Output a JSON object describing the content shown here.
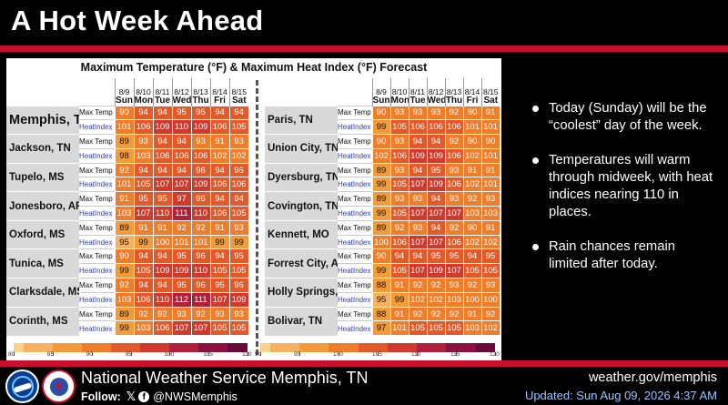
{
  "header": {
    "title": "A Hot Week Ahead"
  },
  "panel": {
    "title": "Maximum Temperature (°F) & Maximum Heat Index (°F) Forecast",
    "row_labels": {
      "max_temp": "Max Temp",
      "heat_index": "HeatIndex"
    },
    "dates": [
      "8/9",
      "8/10",
      "8/11",
      "8/12",
      "8/13",
      "8/14",
      "8/15"
    ],
    "days": [
      "Sun",
      "Mon",
      "Tue",
      "Wed",
      "Thu",
      "Fri",
      "Sat"
    ],
    "left_cities": [
      {
        "name": "Memphis, TN",
        "big": true,
        "max_temp": [
          90,
          94,
          94,
          95,
          95,
          94,
          94
        ],
        "heat_index": [
          101,
          106,
          109,
          110,
          109,
          106,
          105
        ]
      },
      {
        "name": "Jackson, TN",
        "max_temp": [
          89,
          93,
          94,
          94,
          93,
          91,
          93
        ],
        "heat_index": [
          98,
          103,
          106,
          106,
          106,
          102,
          102
        ]
      },
      {
        "name": "Tupelo, MS",
        "max_temp": [
          92,
          94,
          94,
          94,
          96,
          94,
          96
        ],
        "heat_index": [
          101,
          105,
          107,
          107,
          109,
          106,
          106
        ]
      },
      {
        "name": "Jonesboro, AR",
        "max_temp": [
          91,
          95,
          95,
          97,
          96,
          94,
          94
        ],
        "heat_index": [
          103,
          107,
          110,
          111,
          110,
          106,
          105
        ]
      },
      {
        "name": "Oxford, MS",
        "max_temp": [
          89,
          91,
          91,
          92,
          92,
          91,
          93
        ],
        "heat_index": [
          95,
          99,
          100,
          101,
          101,
          99,
          99
        ]
      },
      {
        "name": "Tunica, MS",
        "max_temp": [
          90,
          94,
          94,
          95,
          96,
          94,
          95
        ],
        "heat_index": [
          99,
          105,
          109,
          109,
          110,
          105,
          105
        ]
      },
      {
        "name": "Clarksdale, MS",
        "max_temp": [
          92,
          94,
          94,
          95,
          96,
          95,
          96
        ],
        "heat_index": [
          103,
          106,
          110,
          112,
          111,
          107,
          109
        ]
      },
      {
        "name": "Corinth, MS",
        "max_temp": [
          89,
          92,
          92,
          93,
          92,
          93,
          93
        ],
        "heat_index": [
          99,
          103,
          106,
          107,
          107,
          105,
          105
        ]
      }
    ],
    "right_cities": [
      {
        "name": "Paris, TN",
        "max_temp": [
          90,
          93,
          93,
          93,
          92,
          90,
          91
        ],
        "heat_index": [
          99,
          105,
          106,
          106,
          106,
          101,
          101
        ]
      },
      {
        "name": "Union City, TN",
        "max_temp": [
          90,
          93,
          94,
          94,
          92,
          90,
          90
        ],
        "heat_index": [
          102,
          106,
          109,
          109,
          106,
          102,
          101
        ]
      },
      {
        "name": "Dyersburg, TN",
        "max_temp": [
          89,
          93,
          94,
          95,
          93,
          91,
          91
        ],
        "heat_index": [
          99,
          105,
          107,
          109,
          106,
          102,
          101
        ]
      },
      {
        "name": "Covington, TN",
        "max_temp": [
          89,
          93,
          93,
          94,
          93,
          92,
          93
        ],
        "heat_index": [
          99,
          105,
          107,
          107,
          107,
          103,
          103
        ]
      },
      {
        "name": "Kennett, MO",
        "max_temp": [
          89,
          92,
          93,
          94,
          92,
          90,
          91
        ],
        "heat_index": [
          100,
          106,
          107,
          107,
          106,
          102,
          102
        ]
      },
      {
        "name": "Forrest City, AR",
        "max_temp": [
          90,
          94,
          94,
          95,
          95,
          94,
          95
        ],
        "heat_index": [
          99,
          105,
          107,
          109,
          107,
          105,
          105
        ]
      },
      {
        "name": "Holly Springs, MS",
        "max_temp": [
          88,
          91,
          92,
          92,
          93,
          92,
          93
        ],
        "heat_index": [
          95,
          99,
          102,
          102,
          103,
          100,
          100
        ]
      },
      {
        "name": "Bolivar, TN",
        "max_temp": [
          88,
          91,
          92,
          92,
          92,
          91,
          92
        ],
        "heat_index": [
          97,
          101,
          105,
          105,
          105,
          103,
          102
        ]
      }
    ],
    "left_scale": {
      "min": 80,
      "max": 110,
      "ticks": [
        "80",
        "85",
        "90",
        "95",
        "100",
        "105",
        "110"
      ]
    },
    "right_scale": {
      "min": 90,
      "max": 120,
      "ticks": [
        "90",
        "95",
        "100",
        "105",
        "110",
        "115",
        "120"
      ]
    }
  },
  "bullets": [
    "Today (Sunday) will be the “coolest” day of the week.",
    "Temperatures will warm through midweek, with heat indices nearing 110 in places.",
    "Rain chances remain limited after today."
  ],
  "footer": {
    "office": "National Weather Service Memphis, TN",
    "follow_label": "Follow:",
    "handle": "@NWSMemphis",
    "website": "weather.gov/memphis",
    "updated": "Updated: Sun Aug 09, 2026 4:37 AM",
    "icons": [
      "x-logo-icon",
      "facebook-icon"
    ]
  },
  "colors": {
    "accent_red": "#c8102e",
    "header_bg": "#000000",
    "heat_index_label": "#2e3fb4"
  }
}
